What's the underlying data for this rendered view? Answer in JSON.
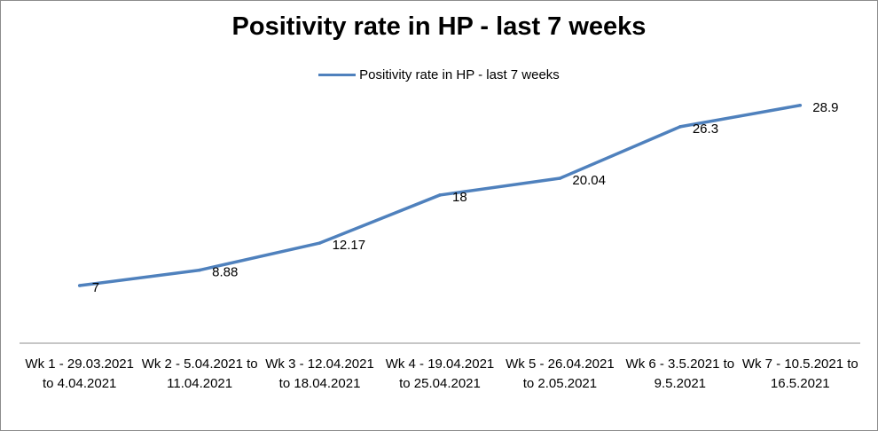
{
  "chart_data": {
    "type": "line",
    "title": "Positivity rate in HP - last 7 weeks",
    "xlabel": "",
    "ylabel": "",
    "legend_position": "top-center",
    "grid": false,
    "ylim": [
      0,
      32
    ],
    "categories": [
      "Wk 1 - 29.03.2021 to 4.04.2021",
      "Wk 2 - 5.04.2021 to 11.04.2021",
      "Wk 3 - 12.04.2021 to 18.04.2021",
      "Wk 4 - 19.04.2021 to 25.04.2021",
      "Wk 5 - 26.04.2021 to 2.05.2021",
      "Wk 6 - 3.5.2021 to 9.5.2021",
      "Wk 7 - 10.5.2021 to 16.5.2021"
    ],
    "series": [
      {
        "name": "Positivity rate in HP - last 7 weeks",
        "color": "#4f81bd",
        "values": [
          7,
          8.88,
          12.17,
          18,
          20.04,
          26.3,
          28.9
        ],
        "labels": [
          "7",
          "8.88",
          "12.17",
          "18",
          "20.04",
          "26.3",
          "28.9"
        ]
      }
    ]
  }
}
